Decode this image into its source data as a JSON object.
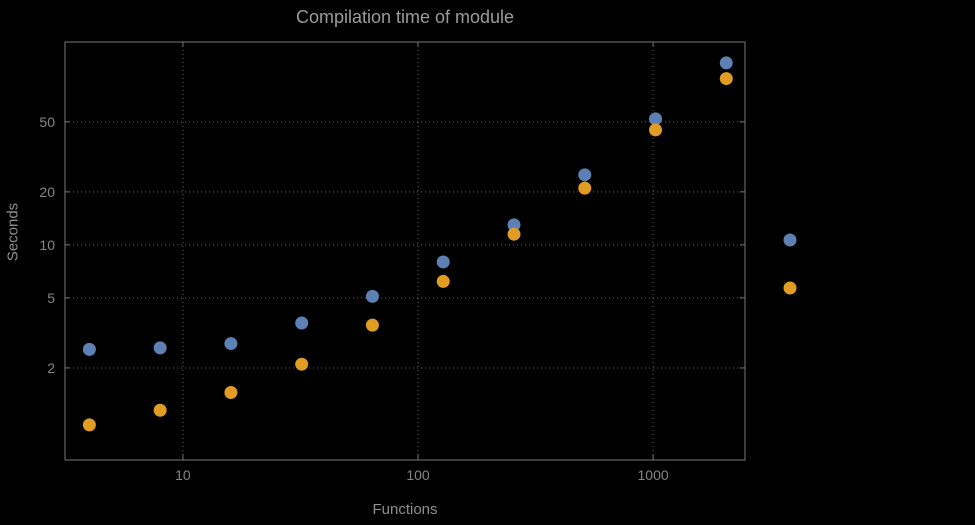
{
  "title": "Compilation time of module",
  "colors": {
    "background": "#000000",
    "frame": "#787878",
    "grid": "#666666",
    "tick_text": "#868686",
    "title_text": "#9b9b9b",
    "axis_label_text": "#8f8f8f",
    "series1": "#5e81b5",
    "series2": "#e19c24"
  },
  "chart_data": {
    "type": "scatter",
    "title": "Compilation time of module",
    "xlabel": "Functions",
    "ylabel": "Seconds",
    "x_scale": "log",
    "y_scale": "log",
    "grid": "dotted",
    "legend_position": "right",
    "legend_labels_visible": false,
    "x_ticks": [
      10,
      100,
      1000
    ],
    "x_tick_labels": [
      "10",
      "100",
      "1000"
    ],
    "y_ticks": [
      2,
      5,
      10,
      20,
      50
    ],
    "y_tick_labels": [
      "2",
      "5",
      "10",
      "20",
      "50"
    ],
    "xlim": [
      3.15,
      2460
    ],
    "ylim": [
      0.6,
      142
    ],
    "x": [
      4,
      8,
      16,
      32,
      64,
      128,
      256,
      512,
      1024,
      2048
    ],
    "series": [
      {
        "name": "series-1-blue",
        "color": "#5e81b5",
        "values": [
          2.55,
          2.6,
          2.75,
          3.6,
          5.1,
          8.0,
          13.0,
          25.0,
          52.0,
          108.0
        ]
      },
      {
        "name": "series-2-orange",
        "color": "#e19c24",
        "values": [
          0.95,
          1.15,
          1.45,
          2.1,
          3.5,
          6.2,
          11.5,
          21.0,
          45.0,
          88.0
        ]
      }
    ]
  },
  "legend": {
    "markers": [
      {
        "series": "series-1-blue",
        "color": "#5e81b5"
      },
      {
        "series": "series-2-orange",
        "color": "#e19c24"
      }
    ]
  }
}
